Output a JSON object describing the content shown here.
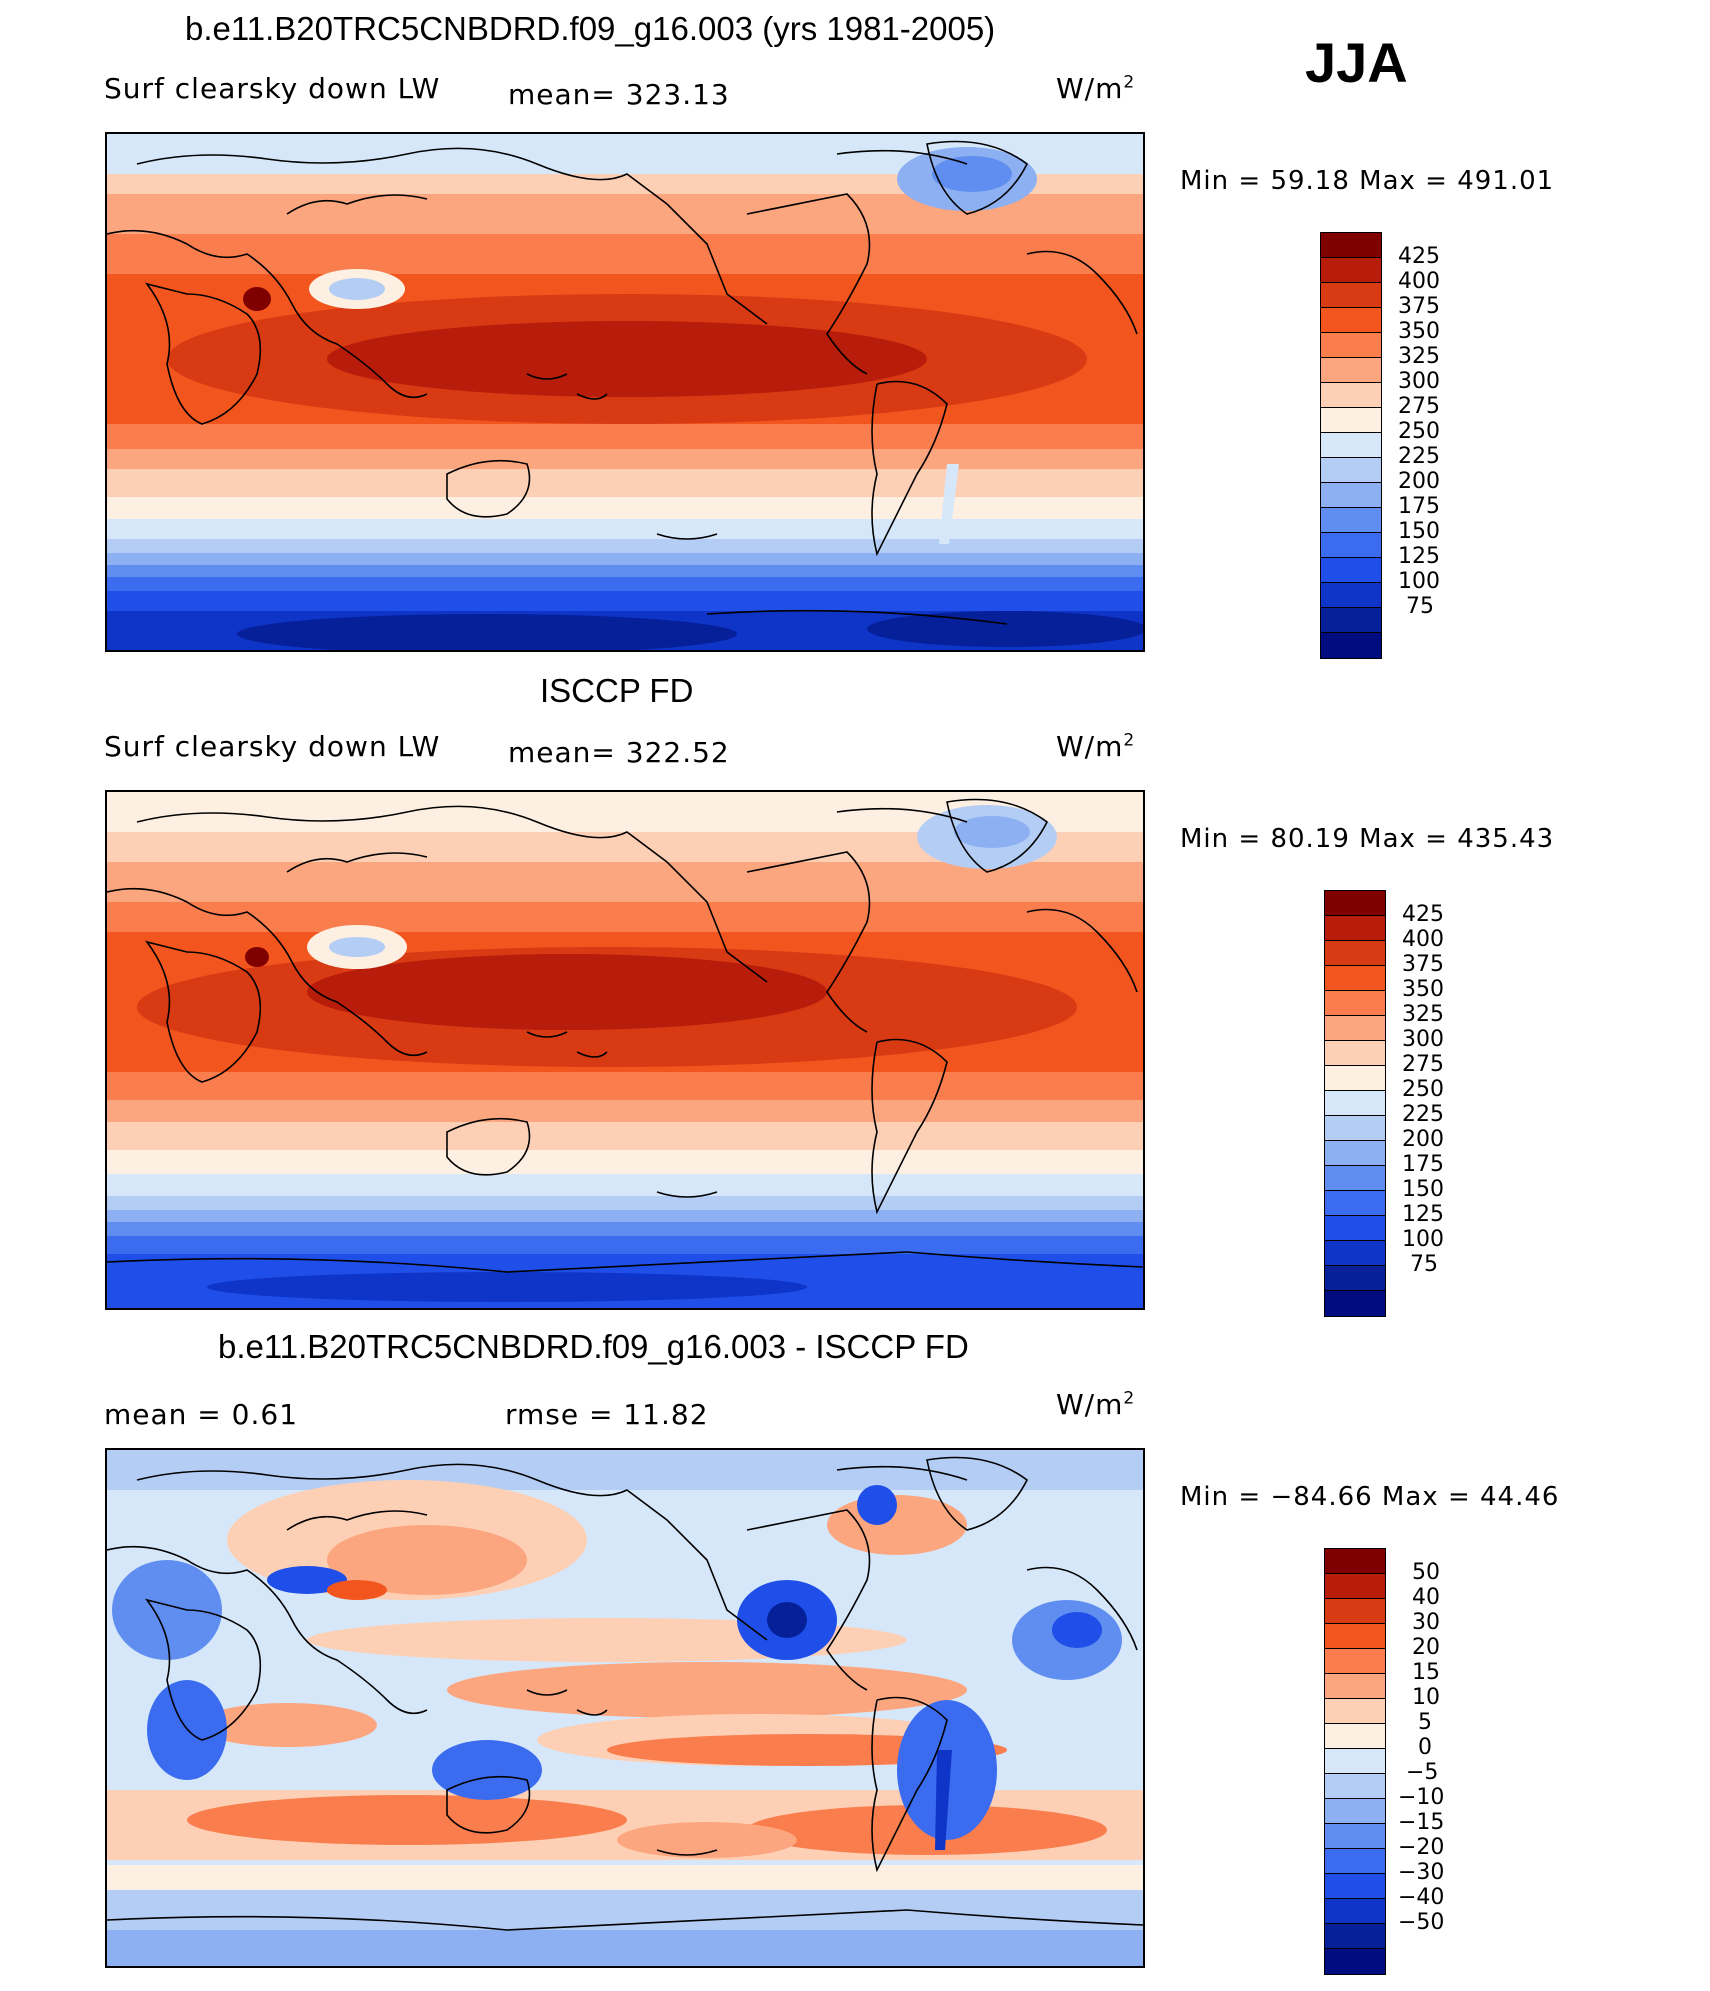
{
  "season": "JJA",
  "panels": [
    {
      "title": "b.e11.B20TRC5CNBDRD.f09_g16.003 (yrs 1981-2005)",
      "left_label": "Surf clearsky down LW",
      "stat": "mean= 323.13",
      "units": "W/m",
      "units_sup": "2",
      "minmax": "Min =   59.18  Max  =  491.01",
      "legend_colors": [
        "#800000",
        "#b81c0a",
        "#d83a14",
        "#f2561e",
        "#fa7d4e",
        "#fca67f",
        "#fdd0b6",
        "#fdf0e2",
        "#d6e7fa",
        "#b4cdf5",
        "#8cb0f2",
        "#5f8ef0",
        "#3b6cf0",
        "#1f4fe8",
        "#0f34c8",
        "#06209a",
        "#000c80"
      ],
      "legend_ticks": [
        "425",
        "400",
        "375",
        "350",
        "325",
        "300",
        "275",
        "250",
        "225",
        "200",
        "175",
        "150",
        "125",
        "100",
        "75"
      ]
    },
    {
      "title": "ISCCP FD",
      "left_label": "Surf clearsky down LW",
      "stat": "mean= 322.52",
      "units": "W/m",
      "units_sup": "2",
      "minmax": "Min =   80.19  Max  =  435.43",
      "legend_colors": [
        "#800000",
        "#b81c0a",
        "#d83a14",
        "#f2561e",
        "#fa7d4e",
        "#fca67f",
        "#fdd0b6",
        "#fdf0e2",
        "#d6e7fa",
        "#b4cdf5",
        "#8cb0f2",
        "#5f8ef0",
        "#3b6cf0",
        "#1f4fe8",
        "#0f34c8",
        "#06209a",
        "#000c80"
      ],
      "legend_ticks": [
        "425",
        "400",
        "375",
        "350",
        "325",
        "300",
        "275",
        "250",
        "225",
        "200",
        "175",
        "150",
        "125",
        "100",
        "75"
      ]
    },
    {
      "title": "b.e11.B20TRC5CNBDRD.f09_g16.003 - ISCCP FD",
      "left_label": "mean =    0.61",
      "stat": "rmse =    11.82",
      "units": "W/m",
      "units_sup": "2",
      "minmax": "Min = −84.66  Max =    44.46",
      "legend_colors": [
        "#800000",
        "#b81c0a",
        "#d83a14",
        "#f2561e",
        "#fa7d4e",
        "#fca67f",
        "#fdd0b6",
        "#fdf0e2",
        "#d6e7fa",
        "#b4cdf5",
        "#8cb0f2",
        "#5f8ef0",
        "#3b6cf0",
        "#1f4fe8",
        "#0f34c8",
        "#06209a",
        "#000c80"
      ],
      "legend_ticks": [
        "50",
        "40",
        "30",
        "20",
        "15",
        "10",
        "5",
        "0",
        "−5",
        "−10",
        "−15",
        "−20",
        "−30",
        "−40",
        "−50"
      ]
    }
  ]
}
